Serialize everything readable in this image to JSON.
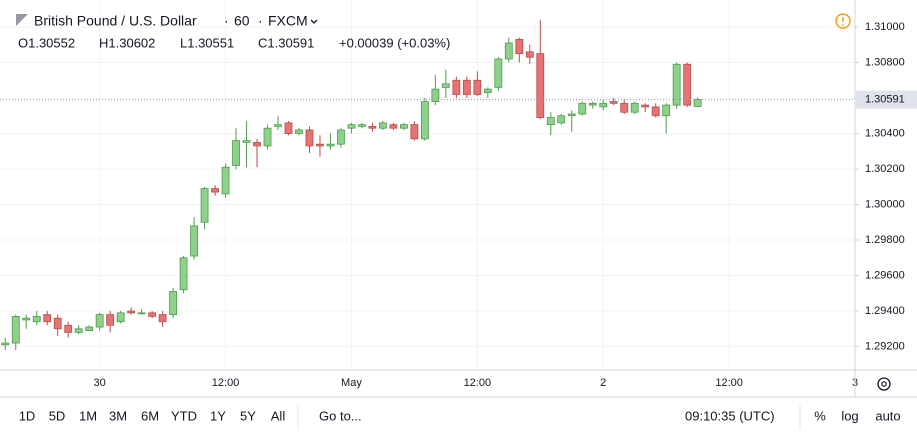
{
  "chart_data": {
    "type": "candlestick",
    "title": "British Pound / U.S. Dollar",
    "interval": "60",
    "source": "FXCM",
    "ohlc_header": [
      "O1.30552",
      "H1.30602",
      "L1.30551",
      "C1.30591",
      "+0.00039 (+0.03%)"
    ],
    "x": [
      0,
      1,
      2,
      3,
      4,
      5,
      6,
      7,
      8,
      9,
      10,
      11,
      12,
      13,
      14,
      15,
      16,
      17,
      18,
      19,
      20,
      21,
      22,
      23,
      24,
      25,
      26,
      27,
      28,
      29,
      30,
      31,
      32,
      33,
      34,
      35,
      36,
      37,
      38,
      39,
      40,
      41,
      42,
      43,
      44,
      45,
      46,
      47,
      48,
      49,
      50,
      51,
      52,
      53,
      54,
      55,
      56,
      57,
      58,
      59,
      60,
      61,
      62,
      63,
      64,
      65,
      66
    ],
    "open": [
      1.2921,
      1.2922,
      1.2935,
      1.2934,
      1.2938,
      1.2936,
      1.2932,
      1.2928,
      1.2929,
      1.2931,
      1.2938,
      1.2934,
      1.294,
      1.2939,
      1.2939,
      1.2938,
      1.2938,
      1.2952,
      1.2971,
      1.299,
      1.3009,
      1.3006,
      1.3022,
      1.3035,
      1.3035,
      1.3033,
      1.3044,
      1.3046,
      1.304,
      1.3042,
      1.3034,
      1.3033,
      1.3034,
      1.3043,
      1.3044,
      1.3044,
      1.3043,
      1.3045,
      1.3043,
      1.3045,
      1.3037,
      1.3058,
      1.3066,
      1.307,
      1.307,
      1.307,
      1.3063,
      1.3066,
      1.3082,
      1.3093,
      1.3086,
      1.3085,
      1.3045,
      1.3046,
      1.305,
      1.3051,
      1.3056,
      1.3055,
      1.3058,
      1.3057,
      1.3052,
      1.3056,
      1.3055,
      1.305,
      1.3056,
      1.3079,
      1.30552
    ],
    "high": [
      1.2925,
      1.2938,
      1.2938,
      1.294,
      1.294,
      1.2938,
      1.2934,
      1.2932,
      1.2932,
      1.2939,
      1.294,
      1.294,
      1.2942,
      1.2941,
      1.294,
      1.294,
      1.2953,
      1.2971,
      1.2993,
      1.301,
      1.3011,
      1.3023,
      1.3043,
      1.3047,
      1.3037,
      1.3045,
      1.305,
      1.3047,
      1.3043,
      1.3044,
      1.3039,
      1.304,
      1.3043,
      1.3046,
      1.3046,
      1.3046,
      1.3047,
      1.3046,
      1.3046,
      1.3047,
      1.306,
      1.3073,
      1.3076,
      1.3072,
      1.3072,
      1.3075,
      1.3066,
      1.3083,
      1.3094,
      1.3094,
      1.309,
      1.3104,
      1.3052,
      1.3051,
      1.3053,
      1.3058,
      1.3058,
      1.3059,
      1.306,
      1.3059,
      1.3058,
      1.3057,
      1.3057,
      1.3057,
      1.308,
      1.308,
      1.30602
    ],
    "low": [
      1.2918,
      1.2918,
      1.293,
      1.2932,
      1.2932,
      1.2926,
      1.2925,
      1.2927,
      1.2929,
      1.2929,
      1.2928,
      1.2933,
      1.2938,
      1.2938,
      1.2936,
      1.2931,
      1.2936,
      1.295,
      1.2969,
      1.2986,
      1.3005,
      1.3004,
      1.302,
      1.3021,
      1.3021,
      1.3031,
      1.3042,
      1.3039,
      1.3039,
      1.3029,
      1.3027,
      1.3031,
      1.3032,
      1.304,
      1.3043,
      1.3041,
      1.3042,
      1.3042,
      1.3042,
      1.3036,
      1.3036,
      1.3056,
      1.306,
      1.306,
      1.306,
      1.3061,
      1.306,
      1.3064,
      1.308,
      1.308,
      1.3079,
      1.3048,
      1.3039,
      1.3045,
      1.3041,
      1.305,
      1.3054,
      1.3053,
      1.3056,
      1.3051,
      1.3051,
      1.3052,
      1.3049,
      1.304,
      1.3054,
      1.3055,
      1.30551
    ],
    "close": [
      1.2922,
      1.2937,
      1.2936,
      1.2937,
      1.2934,
      1.293,
      1.2928,
      1.293,
      1.2931,
      1.2938,
      1.2932,
      1.2939,
      1.2939,
      1.2939,
      1.2937,
      1.2934,
      1.2951,
      1.297,
      1.2988,
      1.3009,
      1.3007,
      1.3021,
      1.3036,
      1.3036,
      1.3033,
      1.3043,
      1.3045,
      1.304,
      1.3042,
      1.3033,
      1.3033,
      1.3034,
      1.3042,
      1.3045,
      1.3045,
      1.3043,
      1.3046,
      1.3043,
      1.3045,
      1.3037,
      1.3058,
      1.3065,
      1.3068,
      1.3062,
      1.3062,
      1.3062,
      1.3065,
      1.3082,
      1.3091,
      1.3085,
      1.3083,
      1.3049,
      1.3049,
      1.305,
      1.3051,
      1.3057,
      1.3057,
      1.3057,
      1.3057,
      1.3052,
      1.3057,
      1.3055,
      1.305,
      1.3056,
      1.3079,
      1.3056,
      1.30591
    ],
    "up_color": "#8fd18a",
    "up_border": "#4e9a4e",
    "down_color": "#e57373",
    "down_border": "#b84c4c",
    "last_price": {
      "value": 1.30591,
      "label": "1.30591"
    },
    "xlim": [
      -0.5,
      81
    ],
    "xticks": [
      {
        "value": 9,
        "label": "30"
      },
      {
        "value": 21,
        "label": "12:00"
      },
      {
        "value": 33,
        "label": "May"
      },
      {
        "value": 45,
        "label": "12:00"
      },
      {
        "value": 57,
        "label": "2"
      },
      {
        "value": 69,
        "label": "12:00"
      },
      {
        "value": 81,
        "label": "3"
      }
    ],
    "ylim": [
      1.29068,
      1.31152
    ],
    "yticks": [
      {
        "value": 1.292,
        "label": "1.29200"
      },
      {
        "value": 1.294,
        "label": "1.29400"
      },
      {
        "value": 1.296,
        "label": "1.29600"
      },
      {
        "value": 1.298,
        "label": "1.29800"
      },
      {
        "value": 1.3,
        "label": "1.30000"
      },
      {
        "value": 1.302,
        "label": "1.30200"
      },
      {
        "value": 1.304,
        "label": "1.30400"
      },
      {
        "value": 1.306,
        "label": "1.30600"
      },
      {
        "value": 1.308,
        "label": "1.30800"
      },
      {
        "value": 1.31,
        "label": "1.31000"
      }
    ],
    "grid": true
  },
  "toolbar": {
    "ranges": [
      "1D",
      "5D",
      "1M",
      "3M",
      "6M",
      "YTD",
      "1Y",
      "5Y",
      "All"
    ],
    "goto": "Go to...",
    "time": "09:10:35 (UTC)",
    "options": [
      "%",
      "log",
      "auto"
    ]
  }
}
